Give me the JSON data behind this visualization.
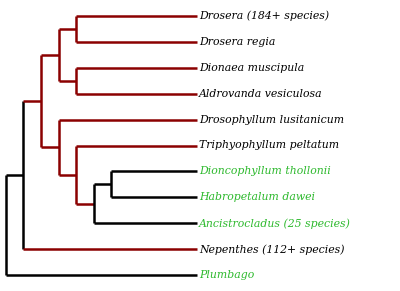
{
  "dark_red": "#8B0000",
  "black": "#000000",
  "green": "#2db92d",
  "background": "#ffffff",
  "linewidth": 1.8,
  "taxa_labels": [
    {
      "y": 10,
      "name": "Drosera (184+ species)",
      "color": "black"
    },
    {
      "y": 9,
      "name": "Drosera regia",
      "color": "black"
    },
    {
      "y": 8,
      "name": "Dionaea muscipula",
      "color": "black"
    },
    {
      "y": 7,
      "name": "Aldrovanda vesiculosa",
      "color": "black"
    },
    {
      "y": 6,
      "name": "Drosophyllum lusitanicum",
      "color": "black"
    },
    {
      "y": 5,
      "name": "Triphyophyllum peltatum",
      "color": "black"
    },
    {
      "y": 4,
      "name": "Dioncophyllum thollonii",
      "color": "green"
    },
    {
      "y": 3,
      "name": "Habropetalum dawei",
      "color": "green"
    },
    {
      "y": 2,
      "name": "Ancistrocladus (25 species)",
      "color": "green"
    },
    {
      "y": 1,
      "name": "Nepenthes (112+ species)",
      "color": "black"
    },
    {
      "y": 0,
      "name": "Plumbago",
      "color": "green"
    }
  ]
}
